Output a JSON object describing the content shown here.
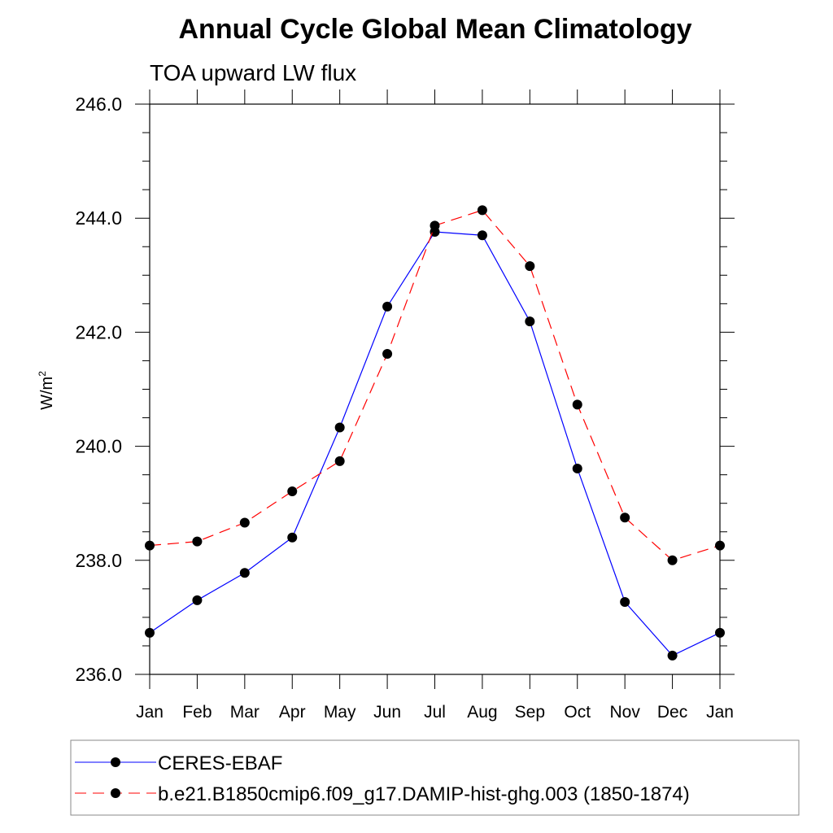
{
  "chart_data": {
    "type": "line",
    "title": "Annual Cycle Global Mean Climatology",
    "subtitle": "TOA upward LW flux",
    "ylabel_base": "W/m",
    "ylabel_sup": "2",
    "ylim": [
      236.0,
      246.0
    ],
    "yticks": [
      {
        "value": 236,
        "label": "236.0"
      },
      {
        "value": 238,
        "label": "238.0"
      },
      {
        "value": 240,
        "label": "240.0"
      },
      {
        "value": 242,
        "label": "242.0"
      },
      {
        "value": 244,
        "label": "244.0"
      },
      {
        "value": 246,
        "label": "246.0"
      }
    ],
    "categories": [
      "Jan",
      "Feb",
      "Mar",
      "Apr",
      "May",
      "Jun",
      "Jul",
      "Aug",
      "Sep",
      "Oct",
      "Nov",
      "Dec",
      "Jan"
    ],
    "series": [
      {
        "name": "CERES-EBAF",
        "color": "#0000ff",
        "dashed": false,
        "values": [
          236.73,
          237.3,
          237.78,
          238.4,
          240.33,
          242.45,
          243.76,
          243.7,
          242.19,
          239.61,
          237.27,
          236.33,
          236.73
        ]
      },
      {
        "name": "b.e21.B1850cmip6.f09_g17.DAMIP-hist-ghg.003 (1850-1874)",
        "color": "#ff0000",
        "dashed": true,
        "values": [
          238.26,
          238.33,
          238.66,
          239.21,
          239.74,
          241.62,
          243.87,
          244.14,
          243.16,
          240.73,
          238.75,
          238.0,
          238.26
        ]
      }
    ]
  }
}
